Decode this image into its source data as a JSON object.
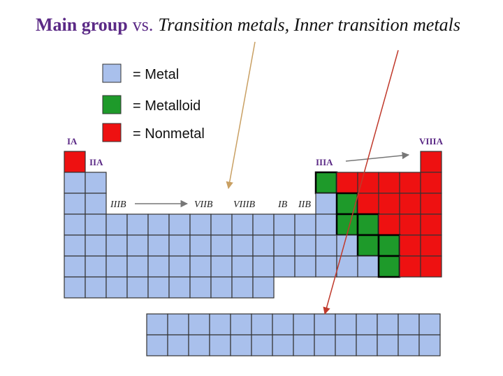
{
  "title": {
    "main": "Main group",
    "vs": "vs.",
    "rest": "Transition metals, Inner transition metals"
  },
  "legend": [
    {
      "label": "= Metal"
    },
    {
      "label": "= Metalloid"
    },
    {
      "label": "= Nonmetal"
    }
  ],
  "group_labels": {
    "ia": "IA",
    "iia": "IIA",
    "iiib": "IIIB",
    "viib": "VIIB",
    "viiib": "VIIIB",
    "ib": "IB",
    "iib": "IIB",
    "iiia": "IIIA",
    "viiia": "VIIIA"
  }
}
